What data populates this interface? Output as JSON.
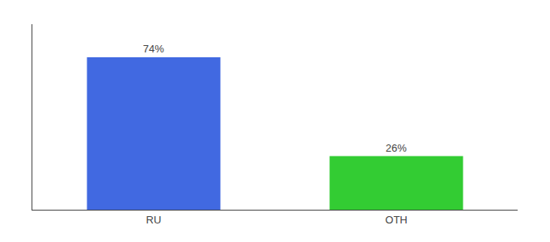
{
  "chart_data": {
    "type": "bar",
    "categories": [
      "RU",
      "OTH"
    ],
    "values": [
      74,
      26
    ],
    "value_labels": [
      "74%",
      "26%"
    ],
    "colors": [
      "#4169e1",
      "#33cc33"
    ],
    "ylim": [
      0,
      90
    ],
    "grid": false,
    "data_labels": true,
    "tick_labels": "x"
  }
}
